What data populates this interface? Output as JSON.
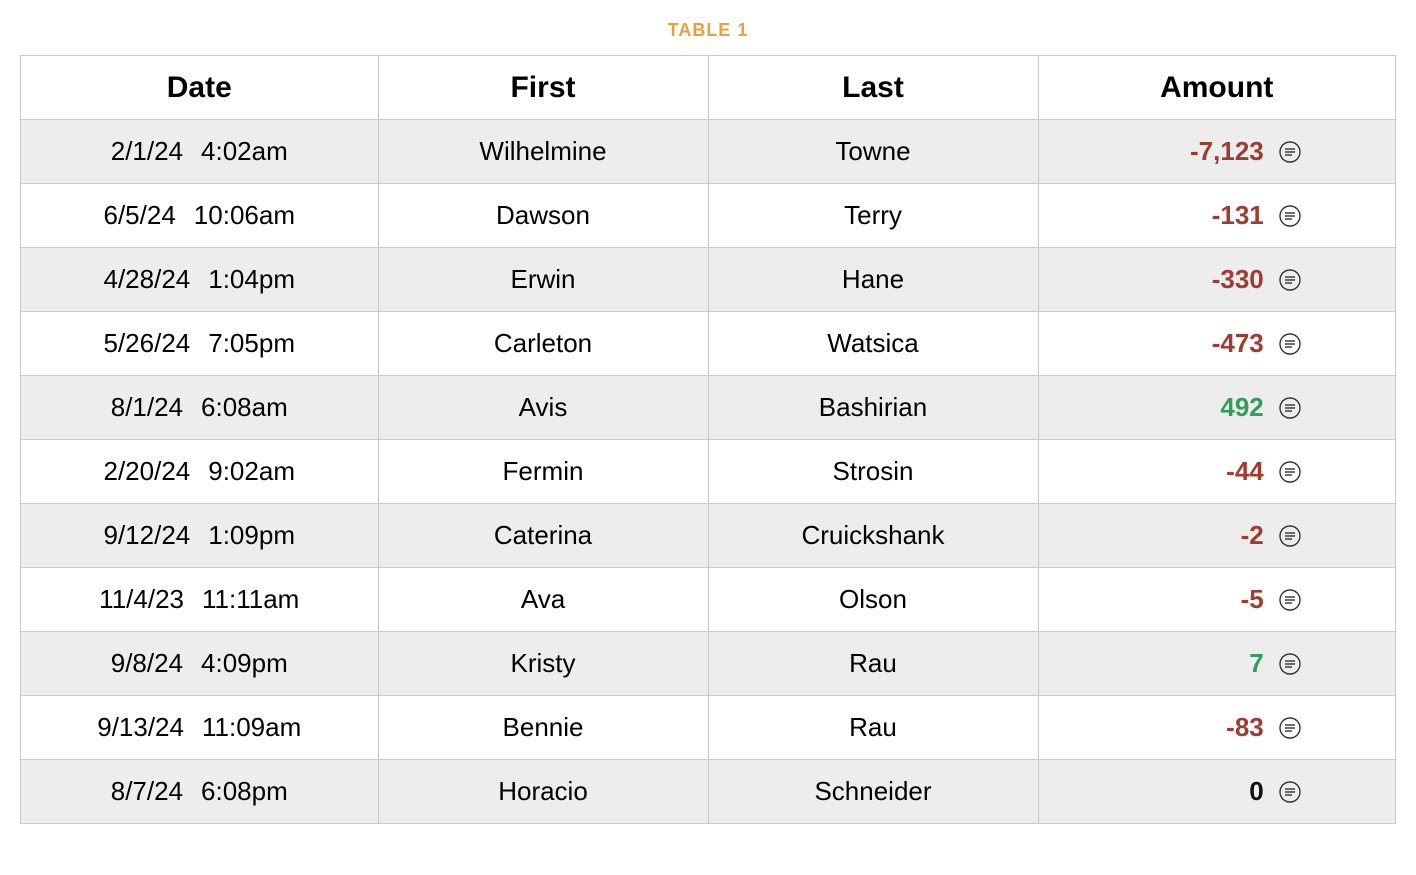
{
  "title": "TABLE 1",
  "colors": {
    "title": "#e8a23d",
    "border": "#c9c9c9",
    "row_odd_bg": "#ededed",
    "row_even_bg": "#ffffff",
    "negative": "#a23a2e",
    "positive": "#2e9e5b",
    "zero": "#111111",
    "icon_stroke": "#333333"
  },
  "typography": {
    "title_fontsize": 18,
    "header_fontsize": 30,
    "cell_fontsize": 26,
    "font_family": "system-ui"
  },
  "columns": [
    {
      "key": "date",
      "label": "Date",
      "width_pct": 26
    },
    {
      "key": "first",
      "label": "First",
      "width_pct": 24
    },
    {
      "key": "last",
      "label": "Last",
      "width_pct": 24
    },
    {
      "key": "amount",
      "label": "Amount",
      "width_pct": 26
    }
  ],
  "rows": [
    {
      "date": "2/1/24",
      "time": "4:02am",
      "first": "Wilhelmine",
      "last": "Towne",
      "amount": "-7,123",
      "sign": "negative"
    },
    {
      "date": "6/5/24",
      "time": "10:06am",
      "first": "Dawson",
      "last": "Terry",
      "amount": "-131",
      "sign": "negative"
    },
    {
      "date": "4/28/24",
      "time": "1:04pm",
      "first": "Erwin",
      "last": "Hane",
      "amount": "-330",
      "sign": "negative"
    },
    {
      "date": "5/26/24",
      "time": "7:05pm",
      "first": "Carleton",
      "last": "Watsica",
      "amount": "-473",
      "sign": "negative"
    },
    {
      "date": "8/1/24",
      "time": "6:08am",
      "first": "Avis",
      "last": "Bashirian",
      "amount": "492",
      "sign": "positive"
    },
    {
      "date": "2/20/24",
      "time": "9:02am",
      "first": "Fermin",
      "last": "Strosin",
      "amount": "-44",
      "sign": "negative"
    },
    {
      "date": "9/12/24",
      "time": "1:09pm",
      "first": "Caterina",
      "last": "Cruickshank",
      "amount": "-2",
      "sign": "negative"
    },
    {
      "date": "11/4/23",
      "time": "11:11am",
      "first": "Ava",
      "last": "Olson",
      "amount": "-5",
      "sign": "negative"
    },
    {
      "date": "9/8/24",
      "time": "4:09pm",
      "first": "Kristy",
      "last": "Rau",
      "amount": "7",
      "sign": "positive"
    },
    {
      "date": "9/13/24",
      "time": "11:09am",
      "first": "Bennie",
      "last": "Rau",
      "amount": "-83",
      "sign": "negative"
    },
    {
      "date": "8/7/24",
      "time": "6:08pm",
      "first": "Horacio",
      "last": "Schneider",
      "amount": "0",
      "sign": "zero"
    }
  ]
}
